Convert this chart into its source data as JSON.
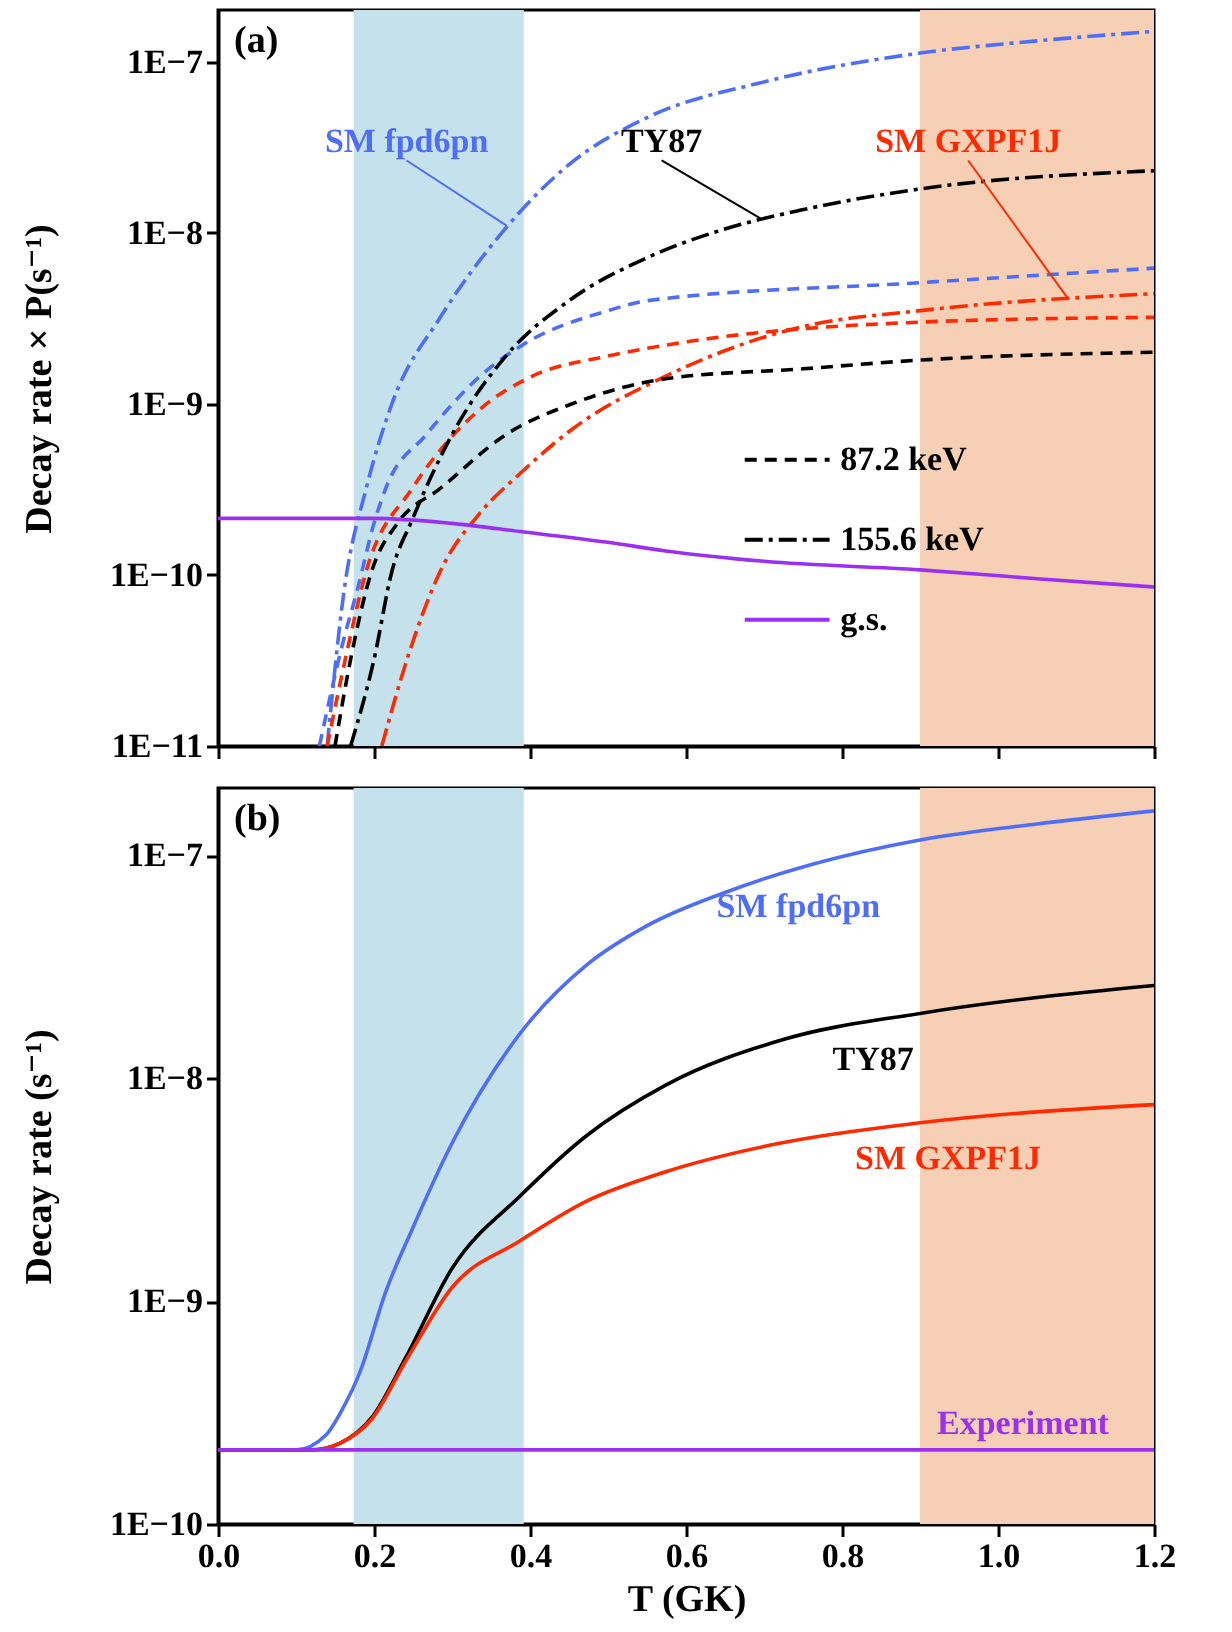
{
  "chart_data": [
    {
      "type": "line",
      "ylabel": "Decay rate × P(s⁻¹)",
      "log": "y",
      "xlim": [
        0,
        1.2
      ],
      "ylim": [
        1e-11,
        2e-07
      ],
      "xticks": [
        0,
        0.2,
        0.4,
        0.6,
        0.8,
        1.0,
        1.2
      ],
      "yticks": [
        {
          "value": 1e-11,
          "label": "1E−11"
        },
        {
          "value": 1e-10,
          "label": "1E−10"
        },
        {
          "value": 1e-09,
          "label": "1E−9"
        },
        {
          "value": 1e-08,
          "label": "1E−8"
        },
        {
          "value": 1e-07,
          "label": "1E−7"
        }
      ],
      "tick_labels": "y",
      "legend": "right",
      "bands": [
        {
          "axis": "x",
          "from": 0.174,
          "to": 0.392,
          "color": "#c5e2ec"
        },
        {
          "axis": "x",
          "from": 0.9,
          "to": 1.2,
          "color": "#f7cfb4"
        }
      ],
      "series": [
        {
          "color": "#4f6ef7",
          "line_style": "dashdot",
          "x": [
            0.14,
            0.162,
            0.19,
            0.223,
            0.285,
            0.364,
            0.45,
            0.55,
            0.7,
            0.9,
            1.05,
            1.2
          ],
          "values": [
            1e-11,
            8.3e-11,
            3.2e-10,
            1e-09,
            3.2e-09,
            1e-08,
            2.5e-08,
            4.7e-08,
            7.6e-08,
            1.12e-07,
            1.32e-07,
            1.5e-07
          ]
        },
        {
          "color": "#4f6ef7",
          "line_style": "dashed",
          "x": [
            0.13,
            0.16,
            0.179,
            0.2,
            0.215,
            0.267,
            0.336,
            0.39,
            0.5,
            0.55,
            0.9,
            1.2
          ],
          "values": [
            1e-11,
            4e-11,
            8.3e-11,
            2e-10,
            3.2e-10,
            6.6e-10,
            1.45e-09,
            2.2e-09,
            3.5e-09,
            4e-09,
            5.1e-09,
            6.2e-09
          ]
        },
        {
          "color": "#ff2a00",
          "line_style": "dashed",
          "x": [
            0.14,
            0.165,
            0.19,
            0.249,
            0.336,
            0.403,
            0.5,
            0.574,
            0.9,
            1.2
          ],
          "values": [
            1e-11,
            3.5e-11,
            1.05e-10,
            3.2e-10,
            9.3e-10,
            1.45e-09,
            1.9e-09,
            2.2e-09,
            3e-09,
            3.2e-09
          ]
        },
        {
          "color": "#ff2a00",
          "line_style": "dashdot",
          "x": [
            0.21,
            0.245,
            0.285,
            0.336,
            0.387,
            0.454,
            0.574,
            0.746,
            0.9,
            1.2
          ],
          "values": [
            1e-11,
            3.5e-11,
            1.05e-10,
            2.3e-10,
            3.9e-10,
            7.1e-10,
            1.45e-09,
            2.8e-09,
            3.5e-09,
            4.4e-09
          ]
        },
        {
          "name": "87.2 keV",
          "color": "#000000",
          "line_style": "dashed",
          "x": [
            0.15,
            0.17,
            0.197,
            0.23,
            0.285,
            0.369,
            0.454,
            0.574,
            0.75,
            0.9,
            1.2
          ],
          "values": [
            1e-11,
            3.2e-11,
            1.05e-10,
            2e-10,
            3.2e-10,
            6.6e-10,
            1e-09,
            1.4e-09,
            1.6e-09,
            1.8e-09,
            2e-09
          ]
        },
        {
          "name": "155.6 keV",
          "color": "#000000",
          "line_style": "dashdot",
          "x": [
            0.17,
            0.2,
            0.223,
            0.249,
            0.3,
            0.369,
            0.45,
            0.549,
            0.65,
            0.746,
            0.9,
            1.2
          ],
          "values": [
            1e-11,
            3.2e-11,
            1.05e-10,
            2.1e-10,
            6.6e-10,
            1.9e-09,
            4e-09,
            7.1e-09,
            1.05e-08,
            1.35e-08,
            1.8e-08,
            2.3e-08
          ]
        },
        {
          "name": "g.s.",
          "color": "#9b30f0",
          "line_style": "solid",
          "x": [
            0,
            0.2,
            0.3,
            0.392,
            0.5,
            0.574,
            0.7,
            0.9,
            1.05,
            1.2
          ],
          "values": [
            2.14e-10,
            2.14e-10,
            2e-10,
            1.78e-10,
            1.55e-10,
            1.38e-10,
            1.2e-10,
            1.07e-10,
            9.5e-11,
            8.5e-11
          ]
        }
      ],
      "annotations": [
        "(a)",
        {
          "text": "SM fpd6pn",
          "x": 0.37,
          "y": 1.1e-08
        },
        {
          "text": "TY87",
          "x": 0.697,
          "y": 1.2e-08
        },
        {
          "text": "SM GXPF1J",
          "x": 1.09,
          "y": 4.1e-09
        }
      ]
    },
    {
      "type": "line",
      "xlabel": "T (GK)",
      "ylabel": "Decay rate (s⁻¹)",
      "log": "y",
      "xlim": [
        0,
        1.2
      ],
      "ylim": [
        1e-10,
        2e-07
      ],
      "xticks": [
        {
          "value": 0,
          "label": "0.0"
        },
        {
          "value": 0.2,
          "label": "0.2"
        },
        {
          "value": 0.4,
          "label": "0.4"
        },
        {
          "value": 0.6,
          "label": "0.6"
        },
        {
          "value": 0.8,
          "label": "0.8"
        },
        {
          "value": 1.0,
          "label": "1.0"
        },
        {
          "value": 1.2,
          "label": "1.2"
        }
      ],
      "yticks": [
        {
          "value": 1e-10,
          "label": "1E−10"
        },
        {
          "value": 1e-09,
          "label": "1E−9"
        },
        {
          "value": 1e-08,
          "label": "1E−8"
        },
        {
          "value": 1e-07,
          "label": "1E−7"
        }
      ],
      "bands": [
        {
          "axis": "x",
          "from": 0.174,
          "to": 0.392,
          "color": "#c5e2ec"
        },
        {
          "axis": "x",
          "from": 0.9,
          "to": 1.2,
          "color": "#f7cfb4"
        }
      ],
      "series": [
        {
          "name": "SM fpd6pn",
          "color": "#4f6ef7",
          "x": [
            0,
            0.1,
            0.138,
            0.16,
            0.182,
            0.215,
            0.249,
            0.3,
            0.387,
            0.472,
            0.549,
            0.65,
            0.762,
            0.9,
            1.05,
            1.2
          ],
          "values": [
            2.15e-10,
            2.15e-10,
            2.5e-10,
            3.3e-10,
            4.8e-10,
            1.1e-09,
            2.1e-09,
            5.1e-09,
            1.58e-08,
            3.2e-08,
            4.8e-08,
            6.8e-08,
            9.1e-08,
            1.17e-07,
            1.38e-07,
            1.58e-07
          ]
        },
        {
          "name": "TY87",
          "color": "#000000",
          "x": [
            0,
            0.12,
            0.156,
            0.197,
            0.241,
            0.3,
            0.387,
            0.472,
            0.574,
            0.728,
            0.9,
            1.2
          ],
          "values": [
            2.15e-10,
            2.15e-10,
            2.3e-10,
            3e-10,
            5.6e-10,
            1.4e-09,
            2.95e-09,
            5.5e-09,
            9.3e-09,
            1.5e-08,
            1.95e-08,
            2.6e-08
          ]
        },
        {
          "name": "SM GXPF1J",
          "color": "#ff2a00",
          "x": [
            0,
            0.12,
            0.156,
            0.197,
            0.241,
            0.3,
            0.387,
            0.472,
            0.574,
            0.72,
            0.9,
            1.2
          ],
          "values": [
            2.15e-10,
            2.15e-10,
            2.3e-10,
            2.95e-10,
            5.4e-10,
            1.15e-09,
            1.86e-09,
            2.8e-09,
            3.8e-09,
            5.1e-09,
            6.3e-09,
            7.6e-09
          ]
        },
        {
          "name": "Experiment",
          "color": "#9b30f0",
          "x": [
            0,
            1.2
          ],
          "values": [
            2.15e-10,
            2.15e-10
          ]
        }
      ],
      "annotations": [
        "(b)"
      ]
    }
  ]
}
